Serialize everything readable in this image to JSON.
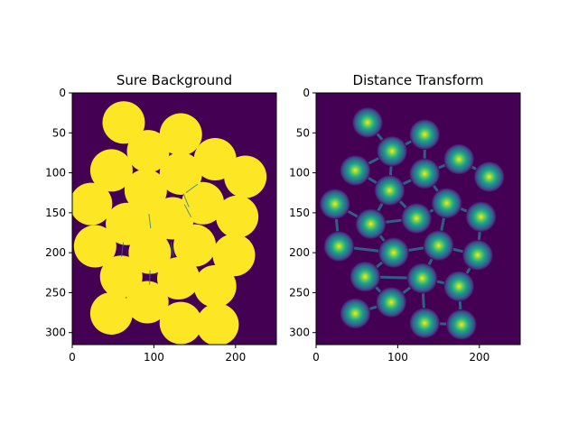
{
  "chart_data": [
    {
      "type": "heatmap",
      "title": "Sure Background",
      "xlim": [
        0,
        250
      ],
      "ylim": [
        315,
        0
      ],
      "xticks": [
        0,
        100,
        200
      ],
      "yticks": [
        0,
        50,
        100,
        150,
        200,
        250,
        300
      ],
      "colormap": "viridis",
      "colors": {
        "background": "#440154",
        "foreground": "#fde725"
      },
      "blob_radius": 26,
      "blobs": [
        [
          63,
          37
        ],
        [
          133,
          52
        ],
        [
          93,
          73
        ],
        [
          175,
          83
        ],
        [
          48,
          97
        ],
        [
          212,
          105
        ],
        [
          133,
          101
        ],
        [
          90,
          122
        ],
        [
          23,
          139
        ],
        [
          160,
          138
        ],
        [
          123,
          157
        ],
        [
          67,
          164
        ],
        [
          202,
          155
        ],
        [
          28,
          192
        ],
        [
          150,
          191
        ],
        [
          95,
          200
        ],
        [
          198,
          203
        ],
        [
          60,
          230
        ],
        [
          130,
          232
        ],
        [
          175,
          242
        ],
        [
          92,
          262
        ],
        [
          48,
          276
        ],
        [
          133,
          288
        ],
        [
          178,
          290
        ],
        [
          100,
          162
        ]
      ]
    },
    {
      "type": "heatmap",
      "title": "Distance Transform",
      "xlim": [
        0,
        250
      ],
      "ylim": [
        315,
        0
      ],
      "xticks": [
        0,
        100,
        200
      ],
      "yticks": [
        0,
        50,
        100,
        150,
        200,
        250,
        300
      ],
      "colormap": "viridis",
      "colors": {
        "background": "#440154",
        "peak": "#fde725"
      },
      "peaks": [
        [
          63,
          37
        ],
        [
          133,
          52
        ],
        [
          93,
          73
        ],
        [
          175,
          83
        ],
        [
          48,
          97
        ],
        [
          212,
          105
        ],
        [
          133,
          101
        ],
        [
          90,
          122
        ],
        [
          23,
          139
        ],
        [
          160,
          138
        ],
        [
          123,
          157
        ],
        [
          67,
          164
        ],
        [
          202,
          155
        ],
        [
          28,
          192
        ],
        [
          150,
          191
        ],
        [
          95,
          200
        ],
        [
          198,
          203
        ],
        [
          60,
          230
        ],
        [
          130,
          232
        ],
        [
          175,
          242
        ],
        [
          92,
          262
        ],
        [
          48,
          276
        ],
        [
          133,
          288
        ],
        [
          178,
          290
        ]
      ],
      "links": [
        [
          0,
          2
        ],
        [
          2,
          1
        ],
        [
          2,
          4
        ],
        [
          2,
          7
        ],
        [
          1,
          6
        ],
        [
          6,
          3
        ],
        [
          3,
          5
        ],
        [
          4,
          7
        ],
        [
          6,
          7
        ],
        [
          7,
          10
        ],
        [
          6,
          9
        ],
        [
          9,
          12
        ],
        [
          8,
          11
        ],
        [
          11,
          10
        ],
        [
          10,
          9
        ],
        [
          11,
          15
        ],
        [
          8,
          13
        ],
        [
          13,
          15
        ],
        [
          15,
          14
        ],
        [
          14,
          16
        ],
        [
          14,
          9
        ],
        [
          15,
          17
        ],
        [
          17,
          18
        ],
        [
          18,
          14
        ],
        [
          18,
          19
        ],
        [
          19,
          16
        ],
        [
          17,
          20
        ],
        [
          20,
          21
        ],
        [
          20,
          18
        ],
        [
          18,
          22
        ],
        [
          22,
          23
        ],
        [
          23,
          19
        ],
        [
          11,
          7
        ],
        [
          12,
          16
        ]
      ]
    }
  ]
}
